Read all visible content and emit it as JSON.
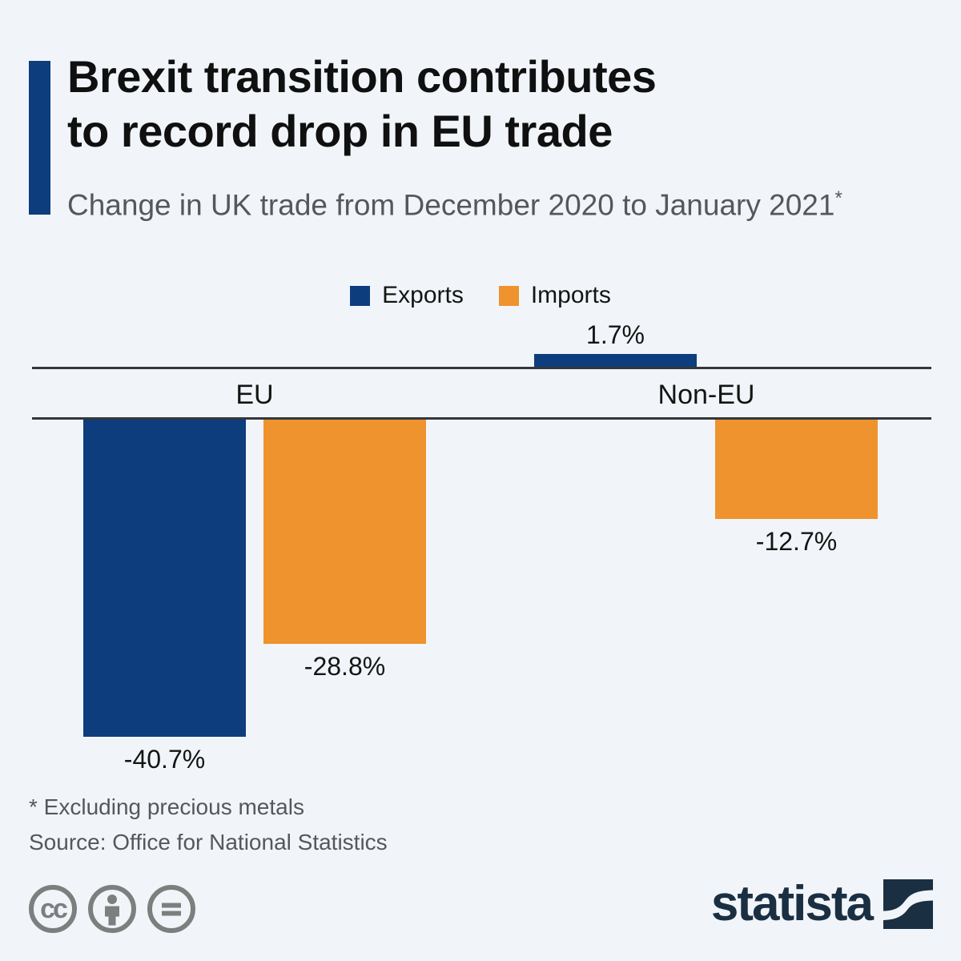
{
  "header": {
    "title_line1": "Brexit transition contributes",
    "title_line2": "to record drop in EU trade",
    "subtitle": "Change in UK trade from December 2020 to January 2021",
    "subtitle_asterisk": "*"
  },
  "legend": [
    {
      "label": "Exports",
      "color": "#0e3d7e"
    },
    {
      "label": "Imports",
      "color": "#ef932e"
    }
  ],
  "chart_data": {
    "type": "bar",
    "title": "Brexit transition contributes to record drop in EU trade",
    "subtitle": "Change in UK trade from December 2020 to January 2021*",
    "categories": [
      "EU",
      "Non-EU"
    ],
    "series": [
      {
        "name": "Exports",
        "color": "#0e3d7e",
        "values": [
          -40.7,
          1.7
        ],
        "labels": [
          "-40.7%",
          "1.7%"
        ]
      },
      {
        "name": "Imports",
        "color": "#ef932e",
        "values": [
          -28.8,
          -12.7
        ],
        "labels": [
          "-28.8%",
          "-12.7%"
        ]
      }
    ],
    "unit": "%",
    "baseline": 0,
    "ylim": [
      -45,
      5
    ],
    "grid": false,
    "legend_position": "top-center",
    "axis_style": "zero-line-band-with-category-labels"
  },
  "footer": {
    "footnote": "* Excluding precious metals",
    "source": "Source: Office for National Statistics",
    "license_icons": [
      "cc-icon",
      "attribution-person-icon",
      "equals-icon"
    ],
    "brand": "statista"
  },
  "colors": {
    "background": "#f1f5f9",
    "exports_blue": "#0e3d7e",
    "imports_orange": "#ef932e",
    "axis_line": "#33373c",
    "text_dark": "#141414",
    "text_gray": "#54585c",
    "license_gray": "#7b7f7e",
    "brand_navy": "#1b2f43"
  }
}
